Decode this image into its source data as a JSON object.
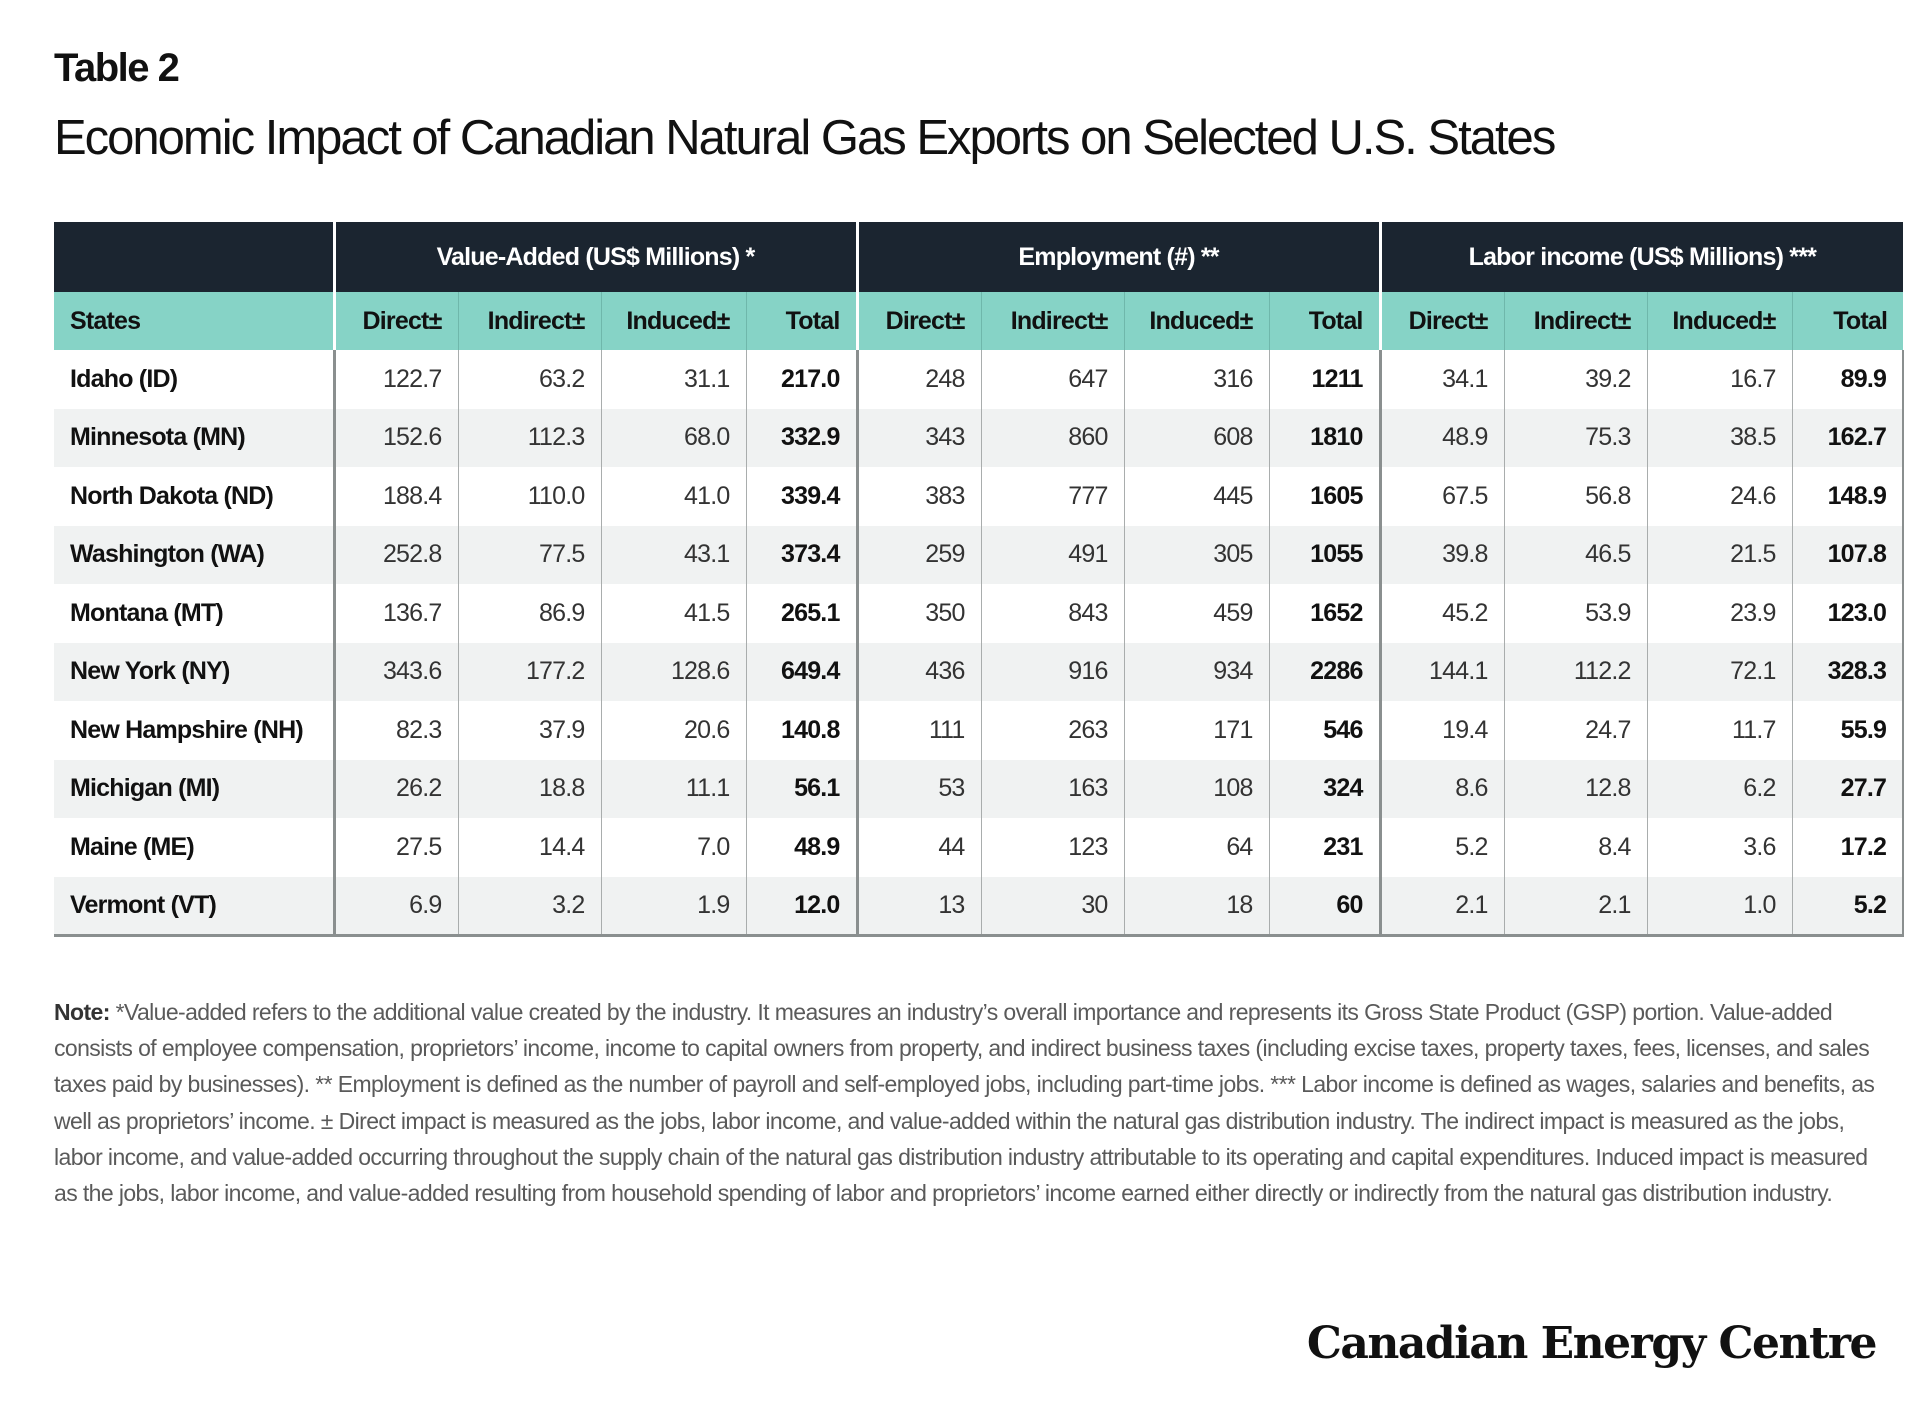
{
  "header": {
    "label": "Table 2",
    "title": "Economic Impact of Canadian Natural Gas Exports on Selected U.S. States"
  },
  "table": {
    "groups": [
      "Value-Added (US$ Millions) *",
      "Employment (#) **",
      "Labor income (US$ Millions) ***"
    ],
    "columns": [
      "States",
      "Direct±",
      "Indirect±",
      "Induced±",
      "Total",
      "Direct±",
      "Indirect±",
      "Induced±",
      "Total",
      "Direct±",
      "Indirect±",
      "Induced±",
      "Total"
    ],
    "rows": [
      [
        "Idaho (ID)",
        "122.7",
        "63.2",
        "31.1",
        "217.0",
        "248",
        "647",
        "316",
        "1211",
        "34.1",
        "39.2",
        "16.7",
        "89.9"
      ],
      [
        "Minnesota (MN)",
        "152.6",
        "112.3",
        "68.0",
        "332.9",
        "343",
        "860",
        "608",
        "1810",
        "48.9",
        "75.3",
        "38.5",
        "162.7"
      ],
      [
        "North Dakota (ND)",
        "188.4",
        "110.0",
        "41.0",
        "339.4",
        "383",
        "777",
        "445",
        "1605",
        "67.5",
        "56.8",
        "24.6",
        "148.9"
      ],
      [
        "Washington (WA)",
        "252.8",
        "77.5",
        "43.1",
        "373.4",
        "259",
        "491",
        "305",
        "1055",
        "39.8",
        "46.5",
        "21.5",
        "107.8"
      ],
      [
        "Montana (MT)",
        "136.7",
        "86.9",
        "41.5",
        "265.1",
        "350",
        "843",
        "459",
        "1652",
        "45.2",
        "53.9",
        "23.9",
        "123.0"
      ],
      [
        "New York (NY)",
        "343.6",
        "177.2",
        "128.6",
        "649.4",
        "436",
        "916",
        "934",
        "2286",
        "144.1",
        "112.2",
        "72.1",
        "328.3"
      ],
      [
        "New Hampshire (NH)",
        "82.3",
        "37.9",
        "20.6",
        "140.8",
        "111",
        "263",
        "171",
        "546",
        "19.4",
        "24.7",
        "11.7",
        "55.9"
      ],
      [
        "Michigan (MI)",
        "26.2",
        "18.8",
        "11.1",
        "56.1",
        "53",
        "163",
        "108",
        "324",
        "8.6",
        "12.8",
        "6.2",
        "27.7"
      ],
      [
        "Maine (ME)",
        "27.5",
        "14.4",
        "7.0",
        "48.9",
        "44",
        "123",
        "64",
        "231",
        "5.2",
        "8.4",
        "3.6",
        "17.2"
      ],
      [
        "Vermont (VT)",
        "6.9",
        "3.2",
        "1.9",
        "12.0",
        "13",
        "30",
        "18",
        "60",
        "2.1",
        "2.1",
        "1.0",
        "5.2"
      ]
    ]
  },
  "note": {
    "label": "Note:",
    "text": " *Value-added refers to the additional value created by the industry. It measures an industry’s overall importance and represents its Gross State Product (GSP) portion. Value-added consists of employee compensation, proprietors’ income, income to capital owners from property, and indirect business taxes (including excise taxes, property taxes, fees, licenses, and sales taxes paid by businesses). ** Employment is defined as the number of payroll and self-employed jobs, including part-time jobs. *** Labor income is defined as wages, salaries and benefits, as well as proprietors’ income.  ± Direct impact is measured as the jobs, labor income, and value-added within the natural gas distribution industry. The indirect impact is measured as the jobs, labor income, and value-added occurring throughout the supply chain of the natural gas distribution industry attributable to its operating and capital expenditures. Induced impact is measured as the jobs, labor income, and value-added resulting from household spending of labor and proprietors’ income earned either directly or indirectly from the natural gas distribution industry."
  },
  "footer": {
    "logo_text": "Canadian Energy Centre"
  },
  "colors": {
    "header_dark": "#1b2530",
    "subheader_teal": "#86d3c6",
    "row_alt": "#f0f2f2"
  }
}
